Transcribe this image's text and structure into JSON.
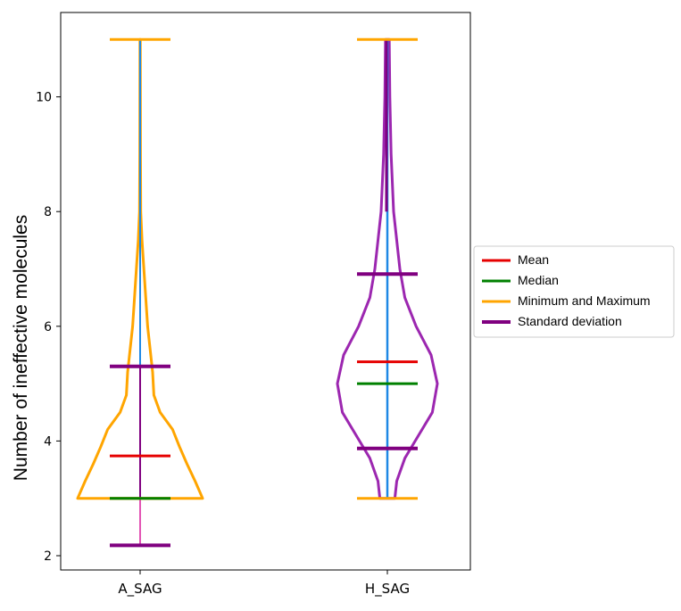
{
  "chart_data": {
    "type": "violin",
    "title": "",
    "xlabel": "",
    "ylabel": "Number of ineffective molecules",
    "ylim": [
      1.8,
      11.5
    ],
    "yticks": [
      2,
      4,
      6,
      8,
      10
    ],
    "categories": [
      "A_SAG",
      "H_SAG"
    ],
    "series": [
      {
        "category": "A_SAG",
        "min": 3,
        "max": 11,
        "mean": 3.74,
        "median": 3.0,
        "std_low": 2.18,
        "std_high": 5.3,
        "outline_color": "#FFA500",
        "density": [
          [
            3.0,
            1.0
          ],
          [
            3.3,
            0.88
          ],
          [
            3.6,
            0.75
          ],
          [
            3.9,
            0.63
          ],
          [
            4.2,
            0.52
          ],
          [
            4.5,
            0.32
          ],
          [
            4.8,
            0.22
          ],
          [
            5.2,
            0.2
          ],
          [
            5.6,
            0.16
          ],
          [
            6.0,
            0.12
          ],
          [
            6.5,
            0.09
          ],
          [
            7.0,
            0.06
          ],
          [
            7.5,
            0.03
          ],
          [
            8.0,
            0.01
          ],
          [
            9.0,
            0.006
          ],
          [
            10.0,
            0.004
          ],
          [
            11.0,
            0.003
          ]
        ]
      },
      {
        "category": "H_SAG",
        "min": 3,
        "max": 11,
        "mean": 5.38,
        "median": 5.0,
        "std_low": 3.87,
        "std_high": 6.91,
        "outline_color": "#9C27B0",
        "density": [
          [
            3.0,
            0.12
          ],
          [
            3.3,
            0.15
          ],
          [
            3.7,
            0.28
          ],
          [
            4.1,
            0.5
          ],
          [
            4.5,
            0.72
          ],
          [
            5.0,
            0.8
          ],
          [
            5.5,
            0.7
          ],
          [
            6.0,
            0.46
          ],
          [
            6.5,
            0.28
          ],
          [
            7.0,
            0.2
          ],
          [
            7.5,
            0.15
          ],
          [
            8.0,
            0.1
          ],
          [
            9.0,
            0.06
          ],
          [
            10.0,
            0.04
          ],
          [
            11.0,
            0.03
          ]
        ]
      }
    ],
    "legend": {
      "placement": "right",
      "items": [
        {
          "label": "Mean",
          "color": "#E60000"
        },
        {
          "label": "Median",
          "color": "#008000"
        },
        {
          "label": "Minimum and Maximum",
          "color": "#FFA500"
        },
        {
          "label": "Standard deviation",
          "color": "#800080"
        }
      ]
    },
    "colors": {
      "center_line": "#1E88E5",
      "a_lower_line": "#D81B9B"
    }
  }
}
